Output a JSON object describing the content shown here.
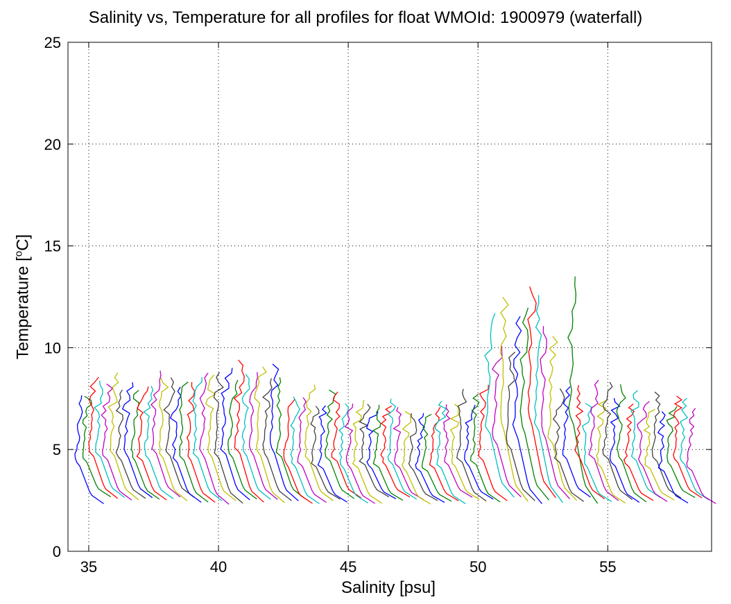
{
  "chart_data": {
    "type": "line",
    "title": "Salinity vs, Temperature for all profiles for float WMOId: 1900979 (waterfall)",
    "xlabel": "Salinity [psu]",
    "ylabel_text": "Temperature [",
    "ylabel_sup": "o",
    "ylabel_suffix": "C]",
    "xlim": [
      34.2,
      59.0
    ],
    "ylim": [
      0,
      25
    ],
    "xticks": [
      "35",
      "40",
      "45",
      "50",
      "55"
    ],
    "yticks": [
      "0",
      "5",
      "10",
      "15",
      "20",
      "25"
    ],
    "grid": true,
    "color_cycle": [
      "#0000ff",
      "#008000",
      "#ff0000",
      "#00bfbf",
      "#bf00bf",
      "#bfbf00",
      "#404040"
    ],
    "profile_count": 89,
    "profile_offset_start": 34.55,
    "profile_offset_step": 0.268,
    "bottom_temp": 2.5,
    "max_surface_temp": 13.5
  }
}
